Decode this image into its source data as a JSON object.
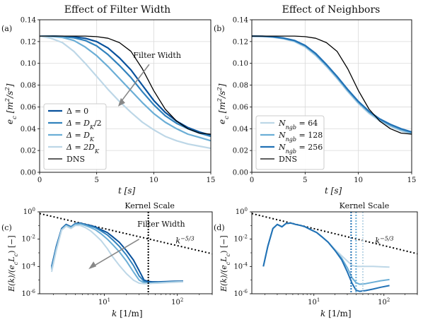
{
  "figure": {
    "titles": [
      "Effect of Filter Width",
      "Effect of Neighbors"
    ],
    "panel_labels": [
      "(a)",
      "(b)",
      "(c)",
      "(d)"
    ]
  },
  "chart_data": [
    {
      "id": "a",
      "type": "line",
      "title": "Effect of Filter Width",
      "xlabel": "t [s]",
      "ylabel": "e_c [m^2/s^2]",
      "xlim": [
        0,
        15
      ],
      "ylim": [
        0,
        0.14
      ],
      "xticks": [
        "0",
        "5",
        "10",
        "15"
      ],
      "yticks": [
        "0.00",
        "0.02",
        "0.04",
        "0.06",
        "0.08",
        "0.10",
        "0.12",
        "0.14"
      ],
      "grid": true,
      "legend_placement": "lower-left",
      "annotation": "Filter Width",
      "series": [
        {
          "name": "Δ = 0",
          "color": "#08519c",
          "x": [
            0,
            1,
            2,
            3,
            4,
            5,
            6,
            7,
            8,
            9,
            10,
            11,
            12,
            13,
            14,
            15
          ],
          "y": [
            0.125,
            0.125,
            0.1248,
            0.1243,
            0.123,
            0.12,
            0.114,
            0.105,
            0.094,
            0.08,
            0.066,
            0.055,
            0.047,
            0.041,
            0.037,
            0.034
          ]
        },
        {
          "name": "Δ = D_K/2",
          "color": "#3182bd",
          "x": [
            0,
            1,
            2,
            3,
            4,
            5,
            6,
            7,
            8,
            9,
            10,
            11,
            12,
            13,
            14,
            15
          ],
          "y": [
            0.125,
            0.125,
            0.1245,
            0.1235,
            0.121,
            0.116,
            0.108,
            0.098,
            0.087,
            0.074,
            0.062,
            0.052,
            0.045,
            0.04,
            0.036,
            0.033
          ]
        },
        {
          "name": "Δ = D_K",
          "color": "#6baed6",
          "x": [
            0,
            1,
            2,
            3,
            4,
            5,
            6,
            7,
            8,
            9,
            10,
            11,
            12,
            13,
            14,
            15
          ],
          "y": [
            0.125,
            0.1248,
            0.1238,
            0.121,
            0.115,
            0.107,
            0.097,
            0.086,
            0.075,
            0.064,
            0.054,
            0.046,
            0.04,
            0.035,
            0.032,
            0.029
          ]
        },
        {
          "name": "Δ = 2D_K",
          "color": "#bdd7e7",
          "x": [
            0,
            1,
            2,
            3,
            4,
            5,
            6,
            7,
            8,
            9,
            10,
            11,
            12,
            13,
            14,
            15
          ],
          "y": [
            0.125,
            0.123,
            0.119,
            0.111,
            0.1,
            0.088,
            0.076,
            0.065,
            0.055,
            0.046,
            0.039,
            0.033,
            0.029,
            0.026,
            0.024,
            0.022
          ]
        },
        {
          "name": "DNS",
          "color": "#000000",
          "x": [
            0,
            1,
            2,
            3,
            4,
            5,
            6,
            7,
            8,
            9,
            10,
            11,
            12,
            13,
            14,
            15
          ],
          "y": [
            0.125,
            0.125,
            0.125,
            0.125,
            0.125,
            0.1245,
            0.123,
            0.119,
            0.111,
            0.095,
            0.075,
            0.058,
            0.047,
            0.04,
            0.036,
            0.035
          ]
        }
      ]
    },
    {
      "id": "b",
      "type": "line",
      "title": "Effect of Neighbors",
      "xlabel": "t [s]",
      "ylabel": "e_c [m^2/s^2]",
      "xlim": [
        0,
        15
      ],
      "ylim": [
        0,
        0.14
      ],
      "xticks": [
        "0",
        "5",
        "10",
        "15"
      ],
      "yticks": [
        "0.00",
        "0.02",
        "0.04",
        "0.06",
        "0.08",
        "0.10",
        "0.12",
        "0.14"
      ],
      "grid": true,
      "legend_placement": "lower-left",
      "series": [
        {
          "name": "N_ngb = 64",
          "color": "#bdd7e7",
          "x": [
            0,
            1,
            2,
            3,
            4,
            5,
            6,
            7,
            8,
            9,
            10,
            11,
            12,
            13,
            14,
            15
          ],
          "y": [
            0.125,
            0.1248,
            0.124,
            0.1225,
            0.12,
            0.115,
            0.107,
            0.097,
            0.086,
            0.074,
            0.063,
            0.054,
            0.047,
            0.042,
            0.038,
            0.035
          ]
        },
        {
          "name": "N_ngb = 128",
          "color": "#6baed6",
          "x": [
            0,
            1,
            2,
            3,
            4,
            5,
            6,
            7,
            8,
            9,
            10,
            11,
            12,
            13,
            14,
            15
          ],
          "y": [
            0.125,
            0.1248,
            0.1242,
            0.1228,
            0.1205,
            0.1158,
            0.108,
            0.098,
            0.087,
            0.075,
            0.064,
            0.055,
            0.048,
            0.043,
            0.039,
            0.036
          ]
        },
        {
          "name": "N_ngb = 256",
          "color": "#2171b5",
          "x": [
            0,
            1,
            2,
            3,
            4,
            5,
            6,
            7,
            8,
            9,
            10,
            11,
            12,
            13,
            14,
            15
          ],
          "y": [
            0.125,
            0.1249,
            0.1244,
            0.1232,
            0.121,
            0.1165,
            0.109,
            0.099,
            0.088,
            0.076,
            0.065,
            0.056,
            0.049,
            0.044,
            0.04,
            0.037
          ]
        },
        {
          "name": "DNS",
          "color": "#000000",
          "x": [
            0,
            1,
            2,
            3,
            4,
            5,
            6,
            7,
            8,
            9,
            10,
            11,
            12,
            13,
            14,
            15
          ],
          "y": [
            0.125,
            0.125,
            0.125,
            0.125,
            0.125,
            0.1245,
            0.123,
            0.119,
            0.111,
            0.095,
            0.075,
            0.058,
            0.047,
            0.04,
            0.036,
            0.035
          ]
        }
      ]
    },
    {
      "id": "c",
      "type": "line",
      "log_x": true,
      "log_y": true,
      "xlabel": "k [1/m]",
      "ylabel": "E(k)/(e_c L_c) [−]",
      "xlim": [
        1.3,
        300
      ],
      "ylim": [
        1e-06,
        1
      ],
      "annotation": "Filter Width",
      "kernel_scale_label": "Kernel Scale",
      "kernel_scale_k": 40,
      "slope_label": "k^−5/3",
      "slope_ref": {
        "k1": 1.3,
        "y1": 0.75,
        "k2": 300,
        "y2": 0.00085
      },
      "series": [
        {
          "name": "Δ = 0",
          "color": "#08519c",
          "x": [
            1.9,
            2.2,
            2.6,
            3,
            3.5,
            4,
            4.7,
            5.5,
            6.5,
            7.5,
            9,
            11,
            13,
            16,
            20,
            25,
            30,
            35,
            40,
            45,
            55,
            70,
            90,
            120
          ],
          "y": [
            0.0001,
            0.003,
            0.06,
            0.12,
            0.08,
            0.14,
            0.15,
            0.12,
            0.1,
            0.08,
            0.05,
            0.03,
            0.015,
            0.006,
            0.0015,
            0.0003,
            5e-05,
            1e-05,
            8e-06,
            7.5e-06,
            7.5e-06,
            7.8e-06,
            8.2e-06,
            8.5e-06
          ]
        },
        {
          "name": "Δ = D_K/2",
          "color": "#3182bd",
          "x": [
            1.9,
            2.2,
            2.6,
            3,
            3.5,
            4,
            4.7,
            5.5,
            6.5,
            7.5,
            9,
            11,
            13,
            16,
            20,
            25,
            30,
            35,
            40,
            45,
            55,
            70,
            90,
            120
          ],
          "y": [
            8e-05,
            0.0025,
            0.055,
            0.11,
            0.075,
            0.13,
            0.14,
            0.11,
            0.09,
            0.07,
            0.04,
            0.02,
            0.009,
            0.003,
            0.0007,
            0.00012,
            2e-05,
            8e-06,
            6.5e-06,
            6.5e-06,
            7e-06,
            7.2e-06,
            7.8e-06,
            8e-06
          ]
        },
        {
          "name": "Δ = D_K",
          "color": "#6baed6",
          "x": [
            1.9,
            2.2,
            2.6,
            3,
            3.5,
            4,
            4.7,
            5.5,
            6.5,
            7.5,
            9,
            11,
            13,
            16,
            20,
            25,
            30,
            35,
            40,
            45,
            55,
            70,
            90,
            120
          ],
          "y": [
            6e-05,
            0.002,
            0.05,
            0.1,
            0.07,
            0.12,
            0.13,
            0.1,
            0.07,
            0.05,
            0.025,
            0.01,
            0.004,
            0.0012,
            0.00025,
            4e-05,
            1e-05,
            6.5e-06,
            6e-06,
            6e-06,
            6.5e-06,
            7e-06,
            7.5e-06,
            7.8e-06
          ]
        },
        {
          "name": "Δ = 2D_K",
          "color": "#bdd7e7",
          "x": [
            1.9,
            2.2,
            2.6,
            3,
            3.5,
            4,
            4.7,
            5.5,
            6.5,
            7.5,
            9,
            11,
            13,
            16,
            20,
            25,
            30,
            35,
            40,
            45,
            55,
            70,
            90,
            120
          ],
          "y": [
            4e-05,
            0.0015,
            0.045,
            0.09,
            0.06,
            0.1,
            0.1,
            0.07,
            0.04,
            0.02,
            0.008,
            0.002,
            0.0005,
            0.00012,
            3e-05,
            1e-05,
            6e-06,
            5.5e-06,
            5.5e-06,
            5.8e-06,
            6e-06,
            6.5e-06,
            7e-06,
            7.5e-06
          ]
        }
      ]
    },
    {
      "id": "d",
      "type": "line",
      "log_x": true,
      "log_y": true,
      "xlabel": "k [1/m]",
      "ylabel": "E(k)/(e_c L_c) [−]",
      "xlim": [
        1.3,
        300
      ],
      "ylim": [
        1e-06,
        1
      ],
      "kernel_scale_label": "Kernel Scale",
      "kernel_scale_k": [
        34,
        40,
        50
      ],
      "slope_label": "k^−5/3",
      "slope_ref": {
        "k1": 1.3,
        "y1": 0.75,
        "k2": 300,
        "y2": 0.00085
      },
      "series": [
        {
          "name": "N_ngb = 64",
          "color": "#bdd7e7",
          "x": [
            1.9,
            2.2,
            2.6,
            3,
            3.5,
            4,
            4.7,
            5.5,
            6.5,
            7.5,
            9,
            11,
            13,
            16,
            20,
            25,
            30,
            35,
            40,
            45,
            55,
            70,
            90,
            120
          ],
          "y": [
            0.0001,
            0.003,
            0.06,
            0.12,
            0.08,
            0.14,
            0.15,
            0.12,
            0.1,
            0.08,
            0.05,
            0.03,
            0.015,
            0.006,
            0.0018,
            0.0006,
            0.00025,
            0.00012,
            0.0001,
            0.0001,
            0.0001,
            0.0001,
            9.5e-05,
            9e-05
          ]
        },
        {
          "name": "N_ngb = 128",
          "color": "#6baed6",
          "x": [
            1.9,
            2.2,
            2.6,
            3,
            3.5,
            4,
            4.7,
            5.5,
            6.5,
            7.5,
            9,
            11,
            13,
            16,
            20,
            25,
            30,
            35,
            40,
            45,
            55,
            70,
            90,
            120
          ],
          "y": [
            0.0001,
            0.003,
            0.06,
            0.12,
            0.08,
            0.14,
            0.15,
            0.12,
            0.1,
            0.08,
            0.05,
            0.03,
            0.015,
            0.006,
            0.0015,
            0.0004,
            8e-05,
            1.5e-05,
            6.5e-06,
            5e-06,
            5.5e-06,
            7e-06,
            9e-06,
            1.1e-05
          ]
        },
        {
          "name": "N_ngb = 256",
          "color": "#2171b5",
          "x": [
            1.9,
            2.2,
            2.6,
            3,
            3.5,
            4,
            4.7,
            5.5,
            6.5,
            7.5,
            9,
            11,
            13,
            16,
            20,
            25,
            30,
            35,
            40,
            45,
            55,
            70,
            90,
            120
          ],
          "y": [
            0.0001,
            0.003,
            0.06,
            0.12,
            0.08,
            0.14,
            0.15,
            0.12,
            0.1,
            0.08,
            0.05,
            0.03,
            0.015,
            0.006,
            0.0015,
            0.0003,
            4e-05,
            6e-06,
            1.8e-06,
            1.5e-06,
            1.7e-06,
            2.2e-06,
            3e-06,
            4e-06
          ]
        }
      ]
    }
  ]
}
